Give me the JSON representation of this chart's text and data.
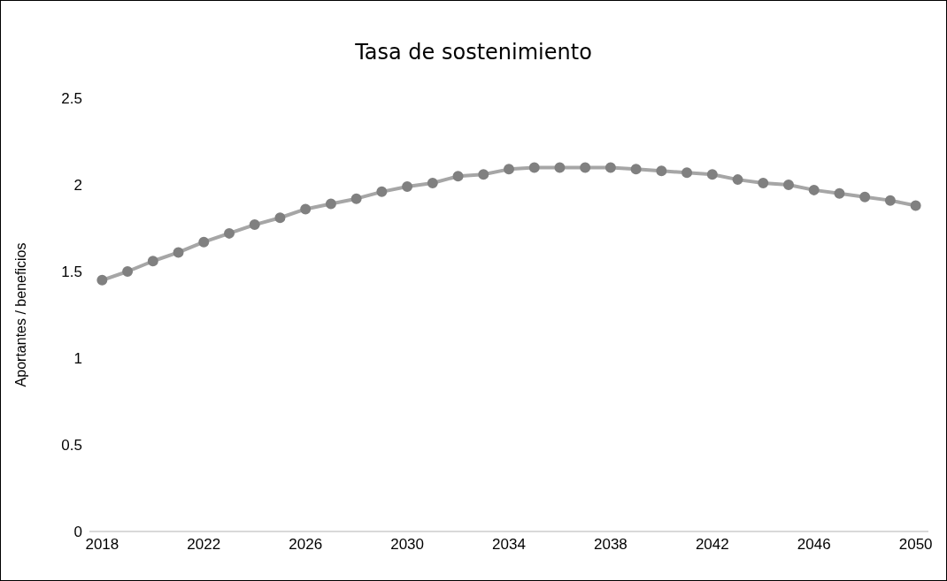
{
  "chart_data": {
    "type": "line",
    "title": "Tasa de sostenimiento",
    "ylabel": "Aportantes / beneficios",
    "x": [
      2018,
      2019,
      2020,
      2021,
      2022,
      2023,
      2024,
      2025,
      2026,
      2027,
      2028,
      2029,
      2030,
      2031,
      2032,
      2033,
      2034,
      2035,
      2036,
      2037,
      2038,
      2039,
      2040,
      2041,
      2042,
      2043,
      2044,
      2045,
      2046,
      2047,
      2048,
      2049,
      2050
    ],
    "series": [
      {
        "color": "#808080",
        "values": [
          1.45,
          1.5,
          1.56,
          1.61,
          1.67,
          1.72,
          1.77,
          1.81,
          1.86,
          1.89,
          1.92,
          1.96,
          1.99,
          2.01,
          2.05,
          2.06,
          2.09,
          2.1,
          2.1,
          2.1,
          2.1,
          2.09,
          2.08,
          2.07,
          2.06,
          2.03,
          2.01,
          2.0,
          1.97,
          1.95,
          1.93,
          1.91,
          1.88
        ]
      }
    ],
    "xlim": [
      2017.5,
      2050.5
    ],
    "xticks": [
      2018,
      2022,
      2026,
      2030,
      2034,
      2038,
      2042,
      2046,
      2050
    ],
    "ylim": [
      0,
      2.5
    ],
    "yticks": [
      0,
      0.5,
      1,
      1.5,
      2,
      2.5
    ],
    "grid": false,
    "legend": false,
    "marker": "circle",
    "line_style": "solid"
  }
}
